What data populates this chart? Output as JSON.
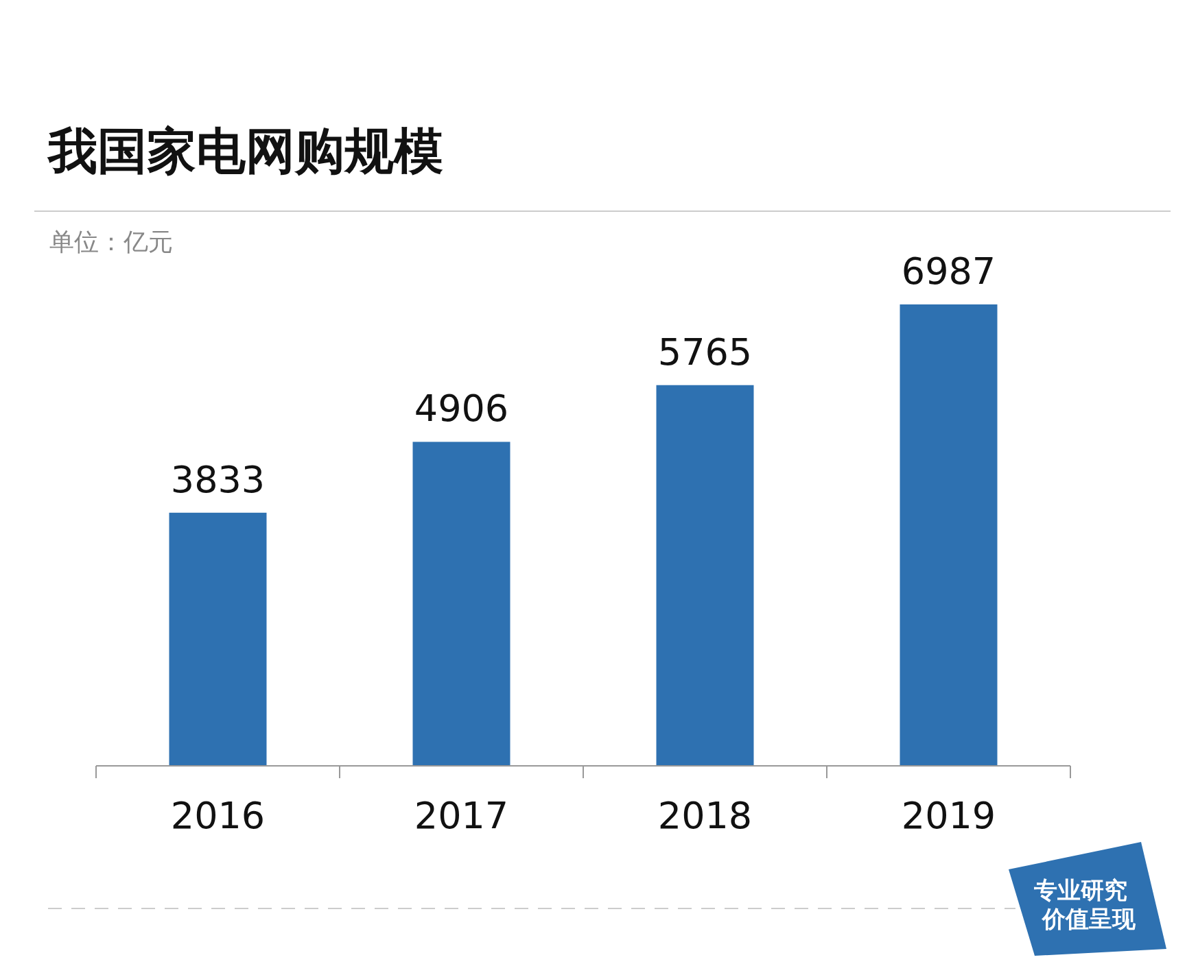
{
  "chart_data": {
    "type": "bar",
    "title": "我国家电网购规模",
    "subtitle": "单位：亿元",
    "categories": [
      "2016",
      "2017",
      "2018",
      "2019"
    ],
    "values": [
      3833,
      4906,
      5765,
      6987
    ],
    "color": "#2e71b1",
    "data_labels": true,
    "annotations": [
      "专业研究",
      "价值呈现"
    ]
  }
}
